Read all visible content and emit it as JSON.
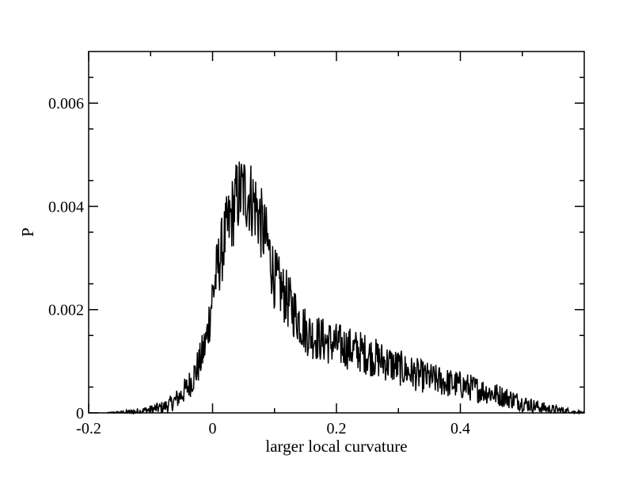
{
  "chart_data": {
    "type": "line",
    "title": "",
    "xlabel": "larger local curvature",
    "ylabel": "P",
    "xlim": [
      -0.2,
      0.6
    ],
    "ylim": [
      0,
      0.007
    ],
    "x_ticks": [
      -0.2,
      0,
      0.2,
      0.4
    ],
    "x_tick_labels": [
      "-0.2",
      "0",
      "0.2",
      "0.4"
    ],
    "y_ticks": [
      0,
      0.002,
      0.004,
      0.006
    ],
    "y_tick_labels": [
      "0",
      "0.002",
      "0.004",
      "0.006"
    ],
    "grid": false,
    "legend": "none",
    "line_color": "#000000",
    "series": [
      {
        "x": [
          -0.17,
          -0.14,
          -0.12,
          -0.1,
          -0.08,
          -0.07,
          -0.06,
          -0.05,
          -0.04,
          -0.03,
          -0.02,
          -0.01,
          0.0,
          0.01,
          0.02,
          0.03,
          0.04,
          0.05,
          0.06,
          0.07,
          0.08,
          0.09,
          0.1,
          0.11,
          0.12,
          0.13,
          0.14,
          0.15,
          0.16,
          0.18,
          0.2,
          0.22,
          0.24,
          0.26,
          0.28,
          0.3,
          0.32,
          0.34,
          0.36,
          0.38,
          0.4,
          0.42,
          0.44,
          0.46,
          0.48,
          0.5,
          0.52,
          0.54,
          0.56,
          0.58,
          0.6
        ],
        "values": [
          0.0,
          1e-05,
          3e-05,
          6e-05,
          0.00011,
          0.00016,
          0.00024,
          0.00036,
          0.0005,
          0.00072,
          0.001,
          0.0014,
          0.0023,
          0.0029,
          0.0034,
          0.0038,
          0.0042,
          0.0043,
          0.0042,
          0.004,
          0.0036,
          0.0032,
          0.0026,
          0.0024,
          0.0022,
          0.002,
          0.0018,
          0.0016,
          0.0015,
          0.0014,
          0.00132,
          0.00125,
          0.00118,
          0.00108,
          0.00098,
          0.00088,
          0.00078,
          0.0007,
          0.00064,
          0.00058,
          0.00054,
          0.00048,
          0.00042,
          0.00035,
          0.00028,
          0.0002,
          0.00013,
          8e-05,
          5e-05,
          2e-05,
          0.0
        ]
      }
    ]
  }
}
